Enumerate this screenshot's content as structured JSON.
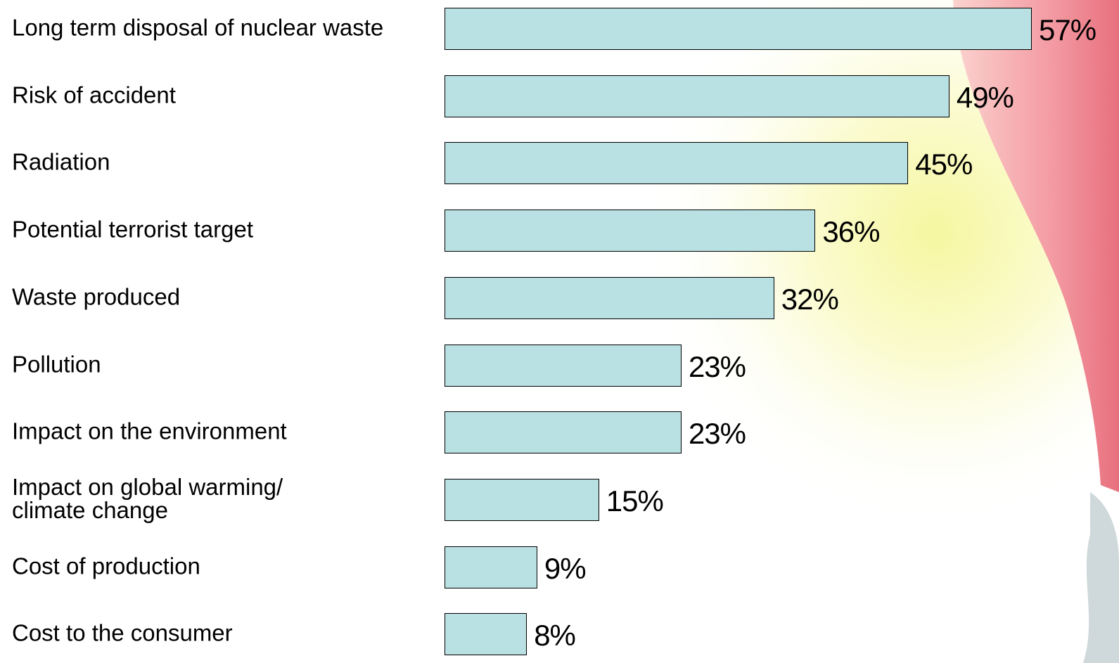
{
  "chart_data": {
    "type": "bar",
    "orientation": "horizontal",
    "categories": [
      "Long term disposal of nuclear waste",
      "Risk of accident",
      "Radiation",
      "Potential terrorist target",
      "Waste produced",
      "Pollution",
      "Impact on the environment",
      "Impact on global warming/\nclimate change",
      "Cost of production",
      "Cost to the consumer"
    ],
    "values": [
      57,
      49,
      45,
      36,
      32,
      23,
      23,
      15,
      9,
      8
    ],
    "value_labels": [
      "57%",
      "49%",
      "45%",
      "36%",
      "32%",
      "23%",
      "23%",
      "15%",
      "9%",
      "8%"
    ],
    "color": "#b9e0e2"
  }
}
